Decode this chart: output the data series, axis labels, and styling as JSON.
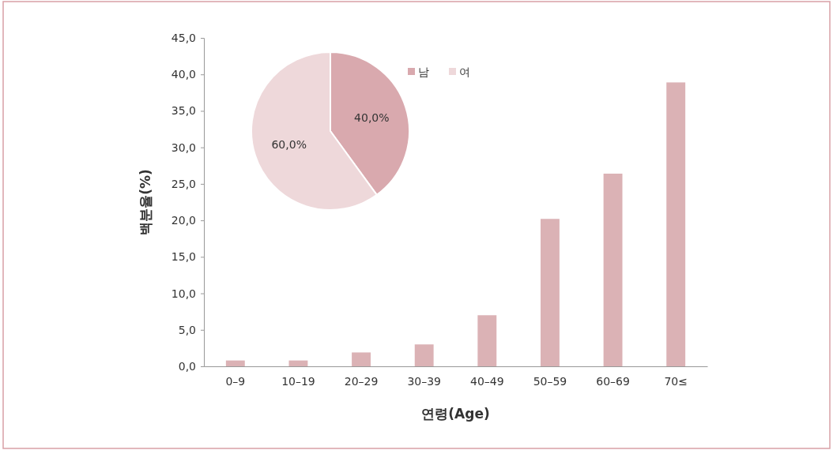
{
  "chart_data": [
    {
      "type": "bar",
      "xlabel": "연령(Age)",
      "ylabel": "백분율(%)",
      "categories": [
        "0–9",
        "10–19",
        "20–29",
        "30–39",
        "40–49",
        "50–59",
        "60–69",
        "70≤"
      ],
      "values": [
        0.8,
        0.8,
        1.9,
        3.0,
        7.0,
        20.2,
        26.4,
        38.9
      ],
      "color": "#dbb2b5",
      "ylim": [
        0,
        45
      ],
      "yticks": [
        {
          "value": 0,
          "label": "0,0"
        },
        {
          "value": 5,
          "label": "5,0"
        },
        {
          "value": 10,
          "label": "10,0"
        },
        {
          "value": 15,
          "label": "15,0"
        },
        {
          "value": 20,
          "label": "20,0"
        },
        {
          "value": 25,
          "label": "25,0"
        },
        {
          "value": 30,
          "label": "30,0"
        },
        {
          "value": 35,
          "label": "35,0"
        },
        {
          "value": 40,
          "label": "40,0"
        },
        {
          "value": 45,
          "label": "45,0"
        }
      ],
      "grid": false
    },
    {
      "type": "pie",
      "categories": [
        "남",
        "여"
      ],
      "values": [
        40,
        60
      ],
      "colors": [
        "#d9a9ae",
        "#eed8da"
      ],
      "value_labels": [
        "40,0%",
        "60,0%"
      ],
      "legend": "top right"
    }
  ]
}
